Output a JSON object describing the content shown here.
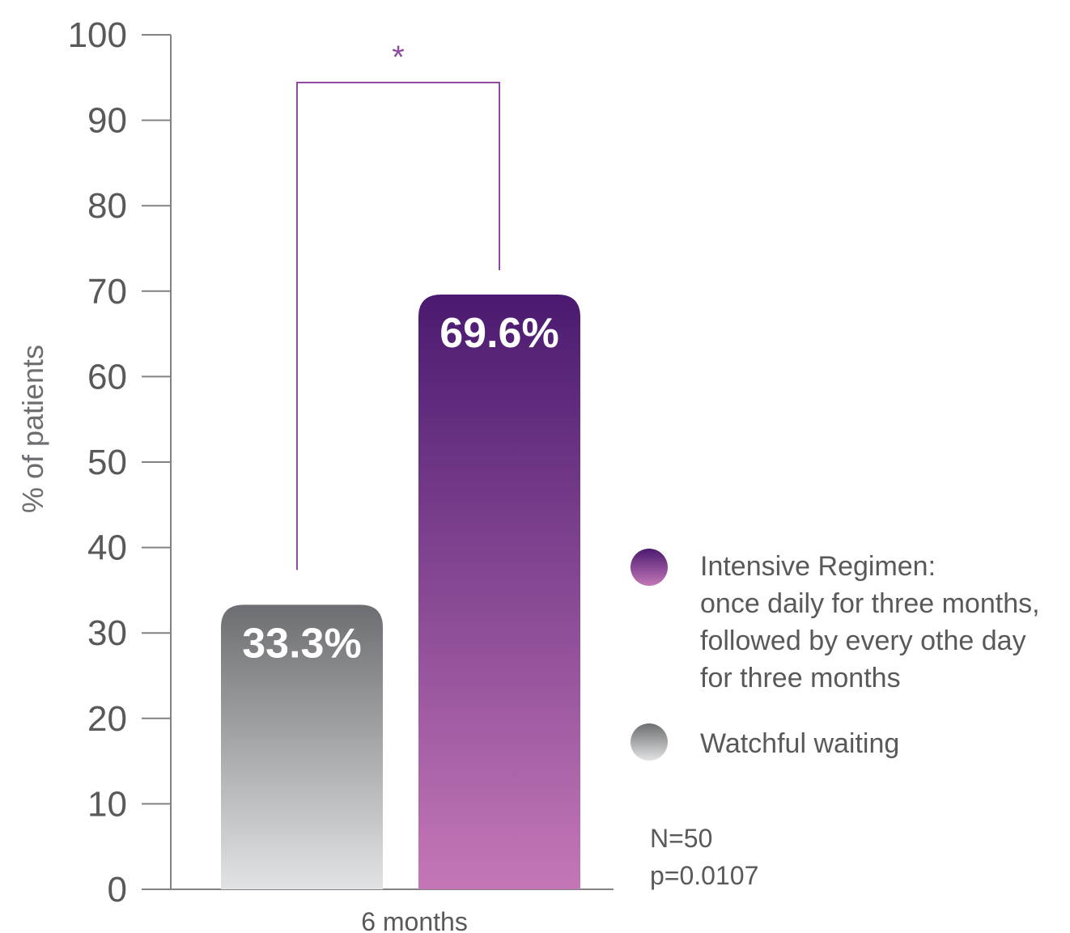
{
  "chart_data": {
    "type": "bar",
    "ylabel": "% of patients",
    "ylim": [
      0,
      100
    ],
    "yticks": [
      0,
      10,
      20,
      30,
      40,
      50,
      60,
      70,
      80,
      90,
      100
    ],
    "categories": [
      "6 months"
    ],
    "series": [
      {
        "name": "Watchful waiting",
        "values": [
          33.3
        ],
        "label": "33.3%",
        "color_top": "#6d6e71",
        "color_bottom": "#e2e3e4"
      },
      {
        "name": "Intensive Regimen: once daily for three months, followed by every othe day for three months",
        "values": [
          69.6
        ],
        "label": "69.6%",
        "color_top": "#4a1a70",
        "color_bottom": "#c477b7"
      }
    ],
    "significance": {
      "symbol": "*",
      "color": "#8e4ba0"
    },
    "grid": false,
    "legend_position": "right"
  },
  "legend": {
    "intensive_lines": [
      "Intensive Regimen:",
      "once daily for three months,",
      "followed by every othe day",
      "for three months"
    ],
    "watchful": "Watchful waiting"
  },
  "notes": {
    "n": "N=50",
    "p": "p=0.0107"
  }
}
